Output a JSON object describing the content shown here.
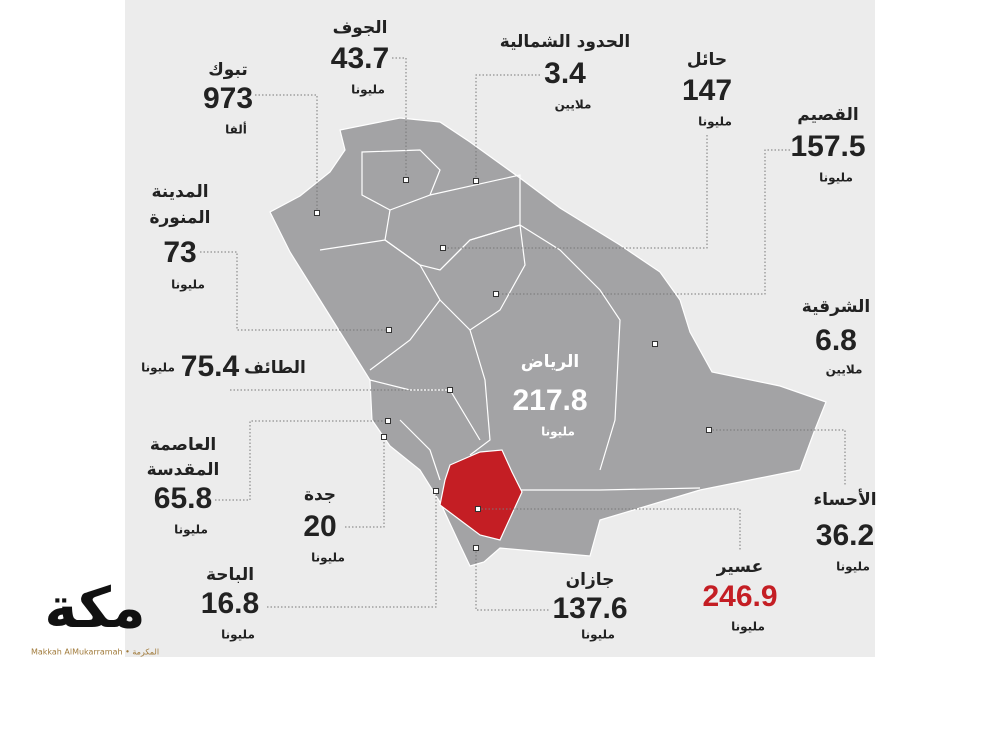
{
  "regions": [
    {
      "name": [
        "تبوك"
      ],
      "value": 973,
      "unit": "ألفا"
    },
    {
      "name": [
        "الجوف"
      ],
      "value": 43.7,
      "unit": "مليونا"
    },
    {
      "name": [
        "الحدود الشمالية"
      ],
      "value": 3.4,
      "unit": "ملايين"
    },
    {
      "name": [
        "حائل"
      ],
      "value": 147,
      "unit": "مليونا"
    },
    {
      "name": [
        "القصيم"
      ],
      "value": 157.5,
      "unit": "مليونا"
    },
    {
      "name": [
        "المدينة",
        "المنورة"
      ],
      "value": 73,
      "unit": "مليونا"
    },
    {
      "name": [
        "الشرقية"
      ],
      "value": 6.8,
      "unit": "ملايين"
    },
    {
      "name": [
        "الطائف"
      ],
      "value": 75.4,
      "unit": "مليونا"
    },
    {
      "name": [
        "الرياض"
      ],
      "value": 217.8,
      "unit": "مليونا"
    },
    {
      "name": [
        "العاصمة",
        "المقدسة"
      ],
      "value": 65.8,
      "unit": "مليونا"
    },
    {
      "name": [
        "الأحساء"
      ],
      "value": 36.2,
      "unit": "مليونا"
    },
    {
      "name": [
        "جدة"
      ],
      "value": 20,
      "unit": "مليونا"
    },
    {
      "name": [
        "عسير"
      ],
      "value": 246.9,
      "unit": "مليونا"
    },
    {
      "name": [
        "جازان"
      ],
      "value": 137.6,
      "unit": "مليونا"
    },
    {
      "name": [
        "الباحة"
      ],
      "value": 16.8,
      "unit": "مليونا"
    }
  ],
  "logo": {
    "title": "مكة",
    "caption": "Makkah AlMukarramah • المكرمة"
  }
}
